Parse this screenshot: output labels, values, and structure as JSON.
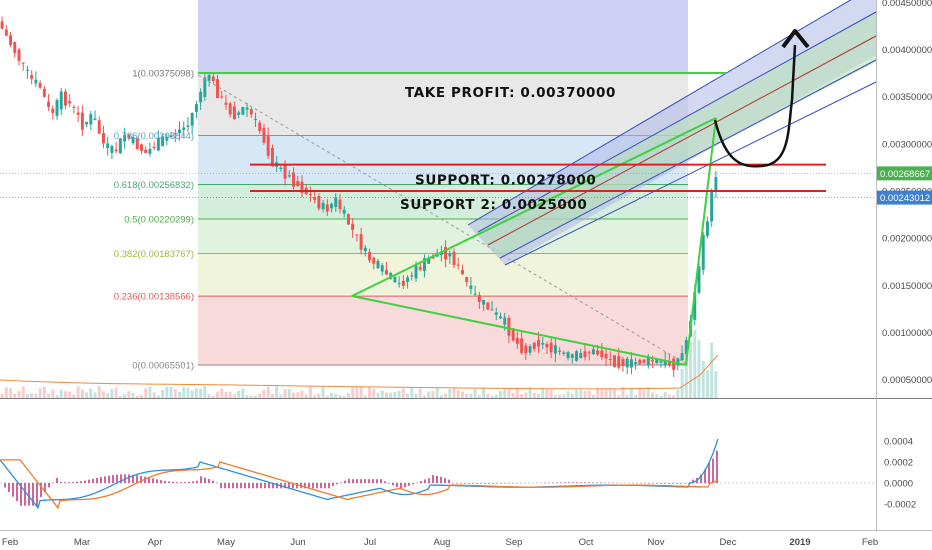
{
  "chart_data": [
    {
      "type": "candlestick",
      "x_ticks": [
        "Feb",
        "Mar",
        "Apr",
        "May",
        "Jun",
        "Jul",
        "Aug",
        "Sep",
        "Oct",
        "Nov",
        "Dec",
        "2019",
        "Feb"
      ],
      "y_ticks": [
        "0.00450000",
        "0.00400000",
        "0.00350000",
        "0.00300000",
        "0.00250000",
        "0.00200000",
        "0.00150000",
        "0.00100000",
        "0.00050000"
      ],
      "ylim": [
        0.0003,
        0.00465
      ],
      "price_badges": [
        {
          "value": "0.00268667",
          "y": 0.00268667,
          "color": "#4caf50"
        },
        {
          "value": "0.00243012",
          "y": 0.00243012,
          "color": "#3f7fd0"
        }
      ],
      "fib_levels": [
        {
          "label": "1(0.00375098)",
          "value": 0.00375098,
          "color": "#777777",
          "fill": "#e6e6e6"
        },
        {
          "label": "0.786(0.00308844)",
          "value": 0.00308844,
          "color": "#5aa0c8",
          "fill": "#d2e5f5"
        },
        {
          "label": "0.618(0.00256832)",
          "value": 0.00256832,
          "color": "#47a86e",
          "fill": "#cfecd9"
        },
        {
          "label": "0.5(0.00220299)",
          "value": 0.00220299,
          "color": "#4caf50",
          "fill": "#dcf2dc"
        },
        {
          "label": "0.382(0.00183767)",
          "value": 0.00183767,
          "color": "#a9b43c",
          "fill": "#edf3d6"
        },
        {
          "label": "0.236(0.00138566)",
          "value": 0.00138566,
          "color": "#e05a5a",
          "fill": "#f7d6d6"
        },
        {
          "label": "0(0.00065501)",
          "value": 0.00065501,
          "color": "#8a8a8a",
          "fill": null
        }
      ],
      "annotations": [
        {
          "text": "TAKE PROFIT: 0.00370000",
          "y": 0.00355
        },
        {
          "text": "SUPPORT: 0.00278000",
          "y": 0.00262
        },
        {
          "text": "SUPPORT 2: 0.0025000",
          "y": 0.00236
        }
      ],
      "support_lines": [
        0.00278,
        0.0025
      ],
      "price_path": [
        [
          0,
          0.0043
        ],
        [
          2,
          0.0041
        ],
        [
          4,
          0.0039
        ],
        [
          6,
          0.0037
        ],
        [
          8,
          0.0036
        ],
        [
          10,
          0.0033
        ],
        [
          12,
          0.0035
        ],
        [
          14,
          0.0034
        ],
        [
          16,
          0.0032
        ],
        [
          18,
          0.0033
        ],
        [
          20,
          0.003
        ],
        [
          22,
          0.0029
        ],
        [
          24,
          0.0031
        ],
        [
          26,
          0.003
        ],
        [
          28,
          0.0029
        ],
        [
          30,
          0.003
        ],
        [
          33,
          0.0031
        ],
        [
          36,
          0.0032
        ],
        [
          38,
          0.0035
        ],
        [
          40,
          0.00375
        ],
        [
          41,
          0.0036
        ],
        [
          43,
          0.0034
        ],
        [
          45,
          0.0033
        ],
        [
          47,
          0.0034
        ],
        [
          50,
          0.0031
        ],
        [
          52,
          0.0028
        ],
        [
          54,
          0.0027
        ],
        [
          56,
          0.0026
        ],
        [
          58,
          0.0025
        ],
        [
          60,
          0.0024
        ],
        [
          62,
          0.0023
        ],
        [
          64,
          0.0024
        ],
        [
          66,
          0.0022
        ],
        [
          68,
          0.002
        ],
        [
          70,
          0.0018
        ],
        [
          72,
          0.0017
        ],
        [
          74,
          0.0016
        ],
        [
          76,
          0.0015
        ],
        [
          78,
          0.0016
        ],
        [
          80,
          0.0017
        ],
        [
          82,
          0.0018
        ],
        [
          84,
          0.00185
        ],
        [
          86,
          0.0018
        ],
        [
          88,
          0.0016
        ],
        [
          90,
          0.0014
        ],
        [
          92,
          0.0013
        ],
        [
          94,
          0.0012
        ],
        [
          96,
          0.0011
        ],
        [
          98,
          0.0009
        ],
        [
          100,
          0.0008
        ],
        [
          102,
          0.0009
        ],
        [
          104,
          0.00085
        ],
        [
          106,
          0.0008
        ],
        [
          108,
          0.00075
        ],
        [
          110,
          0.00075
        ],
        [
          112,
          0.0008
        ],
        [
          114,
          0.00078
        ],
        [
          116,
          0.0007
        ],
        [
          118,
          0.00068
        ],
        [
          120,
          0.00067
        ],
        [
          122,
          0.0007
        ],
        [
          124,
          0.0007
        ],
        [
          126,
          0.00068
        ],
        [
          128,
          0.00066
        ],
        [
          130,
          0.0008
        ],
        [
          131,
          0.0011
        ],
        [
          132,
          0.0014
        ],
        [
          133,
          0.0018
        ],
        [
          134,
          0.0021
        ],
        [
          135,
          0.0024
        ],
        [
          136,
          0.00268
        ]
      ],
      "macd": {
        "ylim": [
          -0.0003,
          0.00045
        ],
        "y_ticks": [
          "0.0004",
          "0.0002",
          "0.0000",
          "-0.0002"
        ]
      }
    }
  ]
}
